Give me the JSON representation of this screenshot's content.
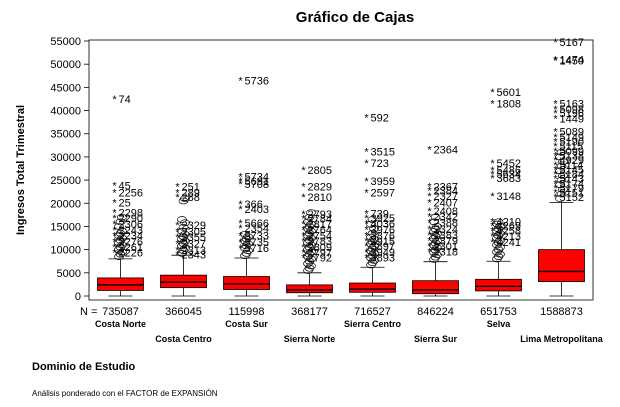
{
  "chart_data": {
    "type": "box",
    "title": "Gráfico de Cajas",
    "xlabel": "Dominio de Estudio",
    "ylabel": "Ingresos Total Trimestral",
    "ylim": [
      0,
      55000
    ],
    "yticks": [
      "0",
      "5000",
      "10000",
      "15000",
      "20000",
      "25000",
      "30000",
      "35000",
      "40000",
      "45000",
      "50000",
      "55000"
    ],
    "n_prefix": "N =",
    "footnote": "Análisis ponderado con el FACTOR de EXPANSIÓN",
    "box_color": "#ff0000",
    "groups": [
      {
        "name": "Costa Norte",
        "n": "735087",
        "q1": 1200,
        "median": 2400,
        "q3": 3900,
        "whisker_low": 0,
        "whisker_high": 8000,
        "outliers_circle": [
          8500,
          9000,
          9500,
          10000,
          10500,
          11000,
          11500,
          12000,
          12500,
          13000,
          13500,
          14000,
          15000,
          16000,
          17000
        ],
        "outliers_star": [
          {
            "y": 42500,
            "label": "74"
          },
          {
            "y": 23800,
            "label": "45"
          },
          {
            "y": 22300,
            "label": "2256"
          },
          {
            "y": 20200,
            "label": "25"
          },
          {
            "y": 18000,
            "label": "2298"
          },
          {
            "y": 16800,
            "label": "2290"
          },
          {
            "y": 15500,
            "label": "2306"
          },
          {
            "y": 14200,
            "label": "2243"
          },
          {
            "y": 13000,
            "label": "2234"
          },
          {
            "y": 11800,
            "label": "2276"
          },
          {
            "y": 10600,
            "label": "2261"
          },
          {
            "y": 9400,
            "label": "2226"
          }
        ]
      },
      {
        "name": "Costa Centro",
        "n": "366045",
        "q1": 1800,
        "median": 3000,
        "q3": 4500,
        "whisker_low": 0,
        "whisker_high": 8800,
        "outliers_circle": [
          9200,
          9800,
          10300,
          10800,
          11300,
          11800,
          12300,
          12800,
          13300,
          14000,
          14800,
          15800,
          16500,
          20500,
          21000
        ],
        "outliers_star": [
          {
            "y": 23600,
            "label": "251"
          },
          {
            "y": 22300,
            "label": "289"
          },
          {
            "y": 21300,
            "label": "288"
          },
          {
            "y": 15300,
            "label": "2329"
          },
          {
            "y": 13900,
            "label": "2305"
          },
          {
            "y": 12700,
            "label": "2355"
          },
          {
            "y": 11300,
            "label": "2327"
          },
          {
            "y": 9900,
            "label": "2313"
          },
          {
            "y": 8900,
            "label": "2343"
          }
        ]
      },
      {
        "name": "Costa Sur",
        "n": "115998",
        "q1": 1400,
        "median": 2600,
        "q3": 4200,
        "whisker_low": 0,
        "whisker_high": 8200,
        "outliers_circle": [
          8700,
          9200,
          9800,
          10300,
          10800,
          11300,
          11800,
          12300,
          12800,
          13300
        ],
        "outliers_star": [
          {
            "y": 46500,
            "label": "5736"
          },
          {
            "y": 25800,
            "label": "5734"
          },
          {
            "y": 24800,
            "label": "5691"
          },
          {
            "y": 24200,
            "label": "5708"
          },
          {
            "y": 19800,
            "label": "366"
          },
          {
            "y": 18800,
            "label": "2403"
          },
          {
            "y": 15700,
            "label": "5666"
          },
          {
            "y": 14700,
            "label": "2354"
          },
          {
            "y": 13100,
            "label": "5733"
          },
          {
            "y": 11700,
            "label": "5735"
          },
          {
            "y": 10300,
            "label": "5716"
          }
        ]
      },
      {
        "name": "Sierra Norte",
        "n": "368177",
        "q1": 700,
        "median": 1300,
        "q3": 2400,
        "whisker_low": 0,
        "whisker_high": 5000,
        "outliers_circle": [
          5500,
          6000,
          6500,
          7000,
          7500,
          8000,
          8500,
          9000,
          9500,
          10000,
          10500,
          11000,
          11500,
          12000,
          12500,
          13000,
          13500,
          14000,
          14500,
          15000,
          15500,
          16000,
          17000,
          18000
        ],
        "outliers_star": [
          {
            "y": 27200,
            "label": "2805"
          },
          {
            "y": 23600,
            "label": "2829"
          },
          {
            "y": 21400,
            "label": "2810"
          },
          {
            "y": 17700,
            "label": "2793"
          },
          {
            "y": 16700,
            "label": "2784"
          },
          {
            "y": 15500,
            "label": "2817"
          },
          {
            "y": 14300,
            "label": "2764"
          },
          {
            "y": 13100,
            "label": "2754"
          },
          {
            "y": 11900,
            "label": "2783"
          },
          {
            "y": 10600,
            "label": "2809"
          },
          {
            "y": 9400,
            "label": "2797"
          },
          {
            "y": 8300,
            "label": "2792"
          }
        ]
      },
      {
        "name": "Sierra Centro",
        "n": "716527",
        "q1": 800,
        "median": 1500,
        "q3": 2800,
        "whisker_low": 0,
        "whisker_high": 6200,
        "outliers_circle": [
          6700,
          7200,
          7700,
          8200,
          8700,
          9200,
          9700,
          10200,
          10700,
          11200,
          11700,
          12200,
          12700,
          13500,
          14500,
          15500,
          16500
        ],
        "outliers_star": [
          {
            "y": 38500,
            "label": "592"
          },
          {
            "y": 31200,
            "label": "3515"
          },
          {
            "y": 28700,
            "label": "723"
          },
          {
            "y": 24800,
            "label": "3959"
          },
          {
            "y": 22300,
            "label": "2597"
          },
          {
            "y": 17800,
            "label": "739"
          },
          {
            "y": 16800,
            "label": "3925"
          },
          {
            "y": 15600,
            "label": "4036"
          },
          {
            "y": 14300,
            "label": "3976"
          },
          {
            "y": 13100,
            "label": "3876"
          },
          {
            "y": 11900,
            "label": "3915"
          },
          {
            "y": 10800,
            "label": "3897"
          },
          {
            "y": 9500,
            "label": "3949"
          },
          {
            "y": 8300,
            "label": "3893"
          }
        ]
      },
      {
        "name": "Sierra Sur",
        "n": "846224",
        "q1": 500,
        "median": 1300,
        "q3": 3300,
        "whisker_low": 0,
        "whisker_high": 7400,
        "outliers_circle": [
          7900,
          8400,
          8900,
          9400,
          9900,
          10400,
          10900,
          11400,
          11900,
          12400,
          12900,
          13400,
          13900,
          14400,
          15000,
          16000,
          17000
        ],
        "outliers_star": [
          {
            "y": 31600,
            "label": "2364"
          },
          {
            "y": 23600,
            "label": "2367"
          },
          {
            "y": 22800,
            "label": "2384"
          },
          {
            "y": 21600,
            "label": "2327"
          },
          {
            "y": 20200,
            "label": "2407"
          },
          {
            "y": 18300,
            "label": "2408"
          },
          {
            "y": 17100,
            "label": "2342"
          },
          {
            "y": 15800,
            "label": "2388"
          },
          {
            "y": 14500,
            "label": "2324"
          },
          {
            "y": 13200,
            "label": "2383"
          },
          {
            "y": 12000,
            "label": "2379"
          },
          {
            "y": 10800,
            "label": "2301"
          },
          {
            "y": 9600,
            "label": "2318"
          }
        ]
      },
      {
        "name": "Selva",
        "n": "651753",
        "q1": 1100,
        "median": 2100,
        "q3": 3600,
        "whisker_low": 0,
        "whisker_high": 7500,
        "outliers_circle": [
          8000,
          8500,
          9000,
          9500,
          10000,
          10500,
          11000,
          11500,
          12000,
          12500,
          13000,
          13500,
          14000,
          14500,
          15000,
          15500,
          16000
        ],
        "outliers_star": [
          {
            "y": 44000,
            "label": "5601"
          },
          {
            "y": 41500,
            "label": "1808"
          },
          {
            "y": 28700,
            "label": "5452"
          },
          {
            "y": 27200,
            "label": "5486"
          },
          {
            "y": 26300,
            "label": "5634"
          },
          {
            "y": 25400,
            "label": "3683"
          },
          {
            "y": 21600,
            "label": "3148"
          },
          {
            "y": 16100,
            "label": "4210"
          },
          {
            "y": 15200,
            "label": "4269"
          },
          {
            "y": 14100,
            "label": "4258"
          },
          {
            "y": 12900,
            "label": "4213"
          },
          {
            "y": 11600,
            "label": "4241"
          }
        ]
      },
      {
        "name": "Lima Metropolitana",
        "n": "1588873",
        "q1": 3100,
        "median": 5300,
        "q3": 10000,
        "whisker_low": 0,
        "whisker_high": 20200,
        "outliers_circle": [
          21000,
          22000,
          23000,
          24000,
          25000,
          26000,
          27000,
          28000,
          29000,
          30000,
          31000
        ],
        "outliers_star": [
          {
            "y": 54800,
            "label": "5167"
          },
          {
            "y": 51000,
            "label": "1474"
          },
          {
            "y": 50800,
            "label": "1450"
          },
          {
            "y": 41500,
            "label": "5163"
          },
          {
            "y": 40300,
            "label": "5098"
          },
          {
            "y": 39500,
            "label": "5196"
          },
          {
            "y": 38300,
            "label": "1449"
          },
          {
            "y": 35500,
            "label": "5089"
          },
          {
            "y": 34300,
            "label": "5149"
          },
          {
            "y": 33300,
            "label": "5190"
          },
          {
            "y": 32300,
            "label": "5115"
          },
          {
            "y": 31300,
            "label": "5099"
          },
          {
            "y": 30300,
            "label": "5138"
          },
          {
            "y": 29300,
            "label": "4929"
          },
          {
            "y": 28300,
            "label": "5114"
          },
          {
            "y": 27300,
            "label": "5145"
          },
          {
            "y": 26300,
            "label": "5184"
          },
          {
            "y": 25300,
            "label": "5143"
          },
          {
            "y": 24300,
            "label": "5174"
          },
          {
            "y": 23300,
            "label": "5179"
          },
          {
            "y": 22300,
            "label": "5151"
          },
          {
            "y": 21300,
            "label": "5152"
          }
        ]
      }
    ]
  }
}
